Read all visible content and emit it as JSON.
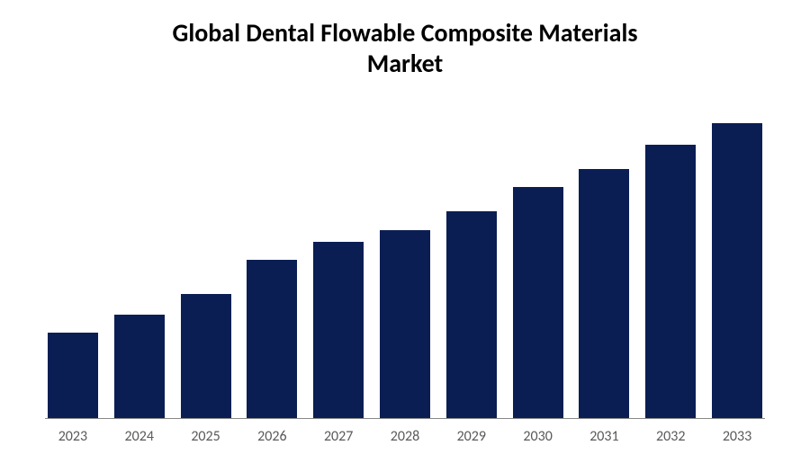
{
  "chart": {
    "type": "bar",
    "title_line1": "Global Dental Flowable Composite Materials",
    "title_line2": "Market",
    "title_fontsize": 28,
    "title_color": "#000000",
    "title_weight": "700",
    "categories": [
      "2023",
      "2024",
      "2025",
      "2026",
      "2027",
      "2028",
      "2029",
      "2030",
      "2031",
      "2032",
      "2033"
    ],
    "values": [
      28,
      34,
      41,
      52,
      58,
      62,
      68,
      76,
      82,
      90,
      97
    ],
    "ylim": [
      0,
      100
    ],
    "bar_color": "#0a1e54",
    "background_color": "#ffffff",
    "axis_line_color": "#888888",
    "label_color": "#595959",
    "label_fontsize": 16,
    "bar_max_width": 56,
    "bar_gap": 12
  }
}
